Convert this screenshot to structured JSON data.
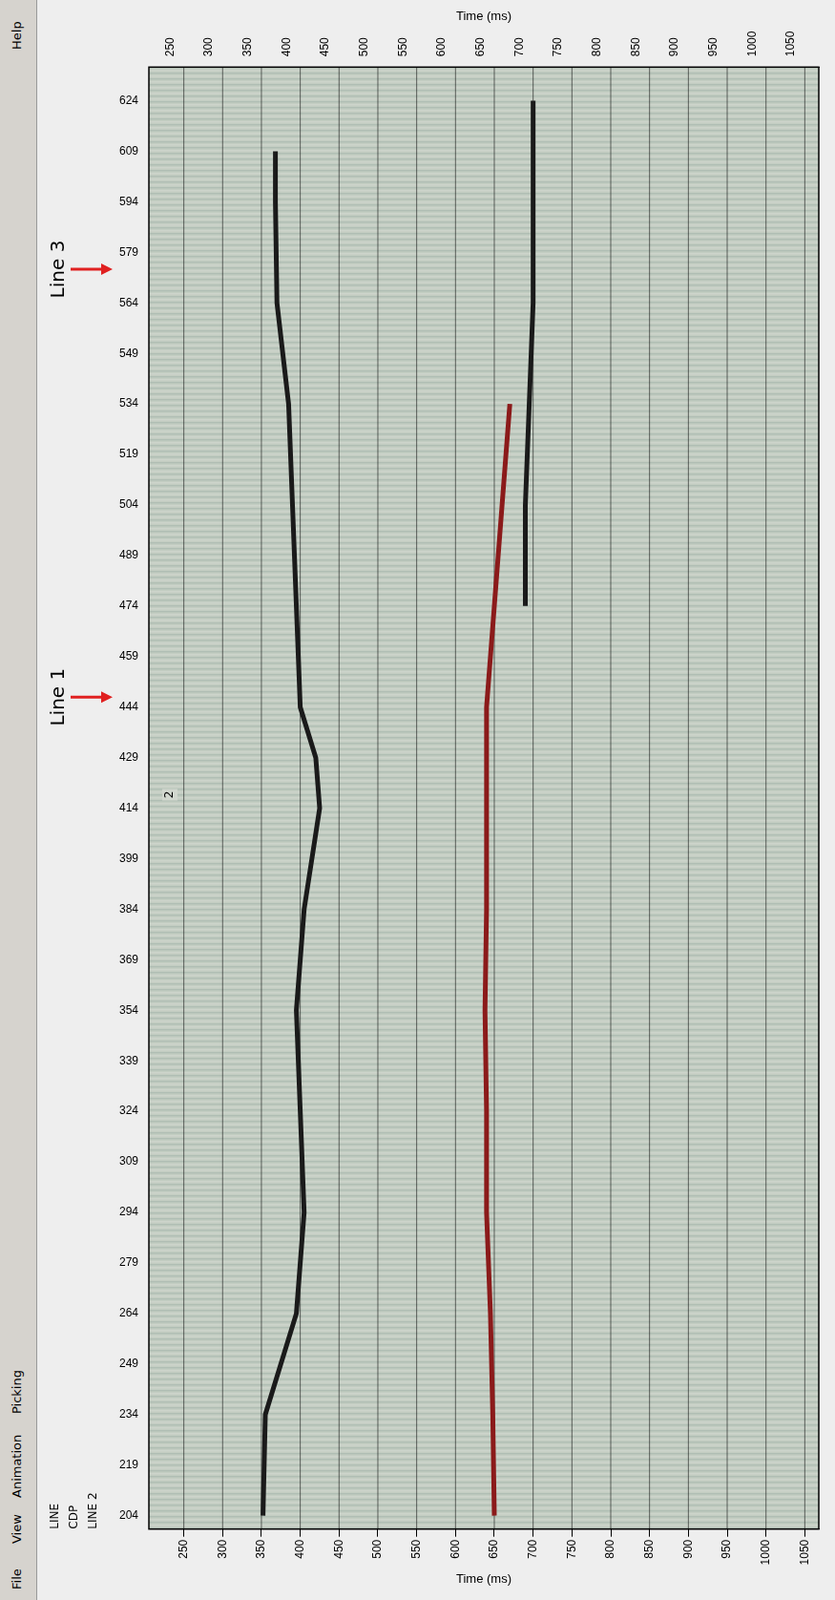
{
  "chart_data": {
    "type": "line",
    "x_label": "Time (ms)",
    "y_label": "CDP",
    "line_label": "LINE",
    "line_name": "LINE 2",
    "xlim": [
      205,
      1068
    ],
    "xticks": [
      250,
      300,
      350,
      400,
      450,
      500,
      550,
      600,
      650,
      700,
      750,
      800,
      850,
      900,
      950,
      1000,
      1050
    ],
    "ylim": [
      200,
      634
    ],
    "yticks": [
      204,
      219,
      234,
      249,
      264,
      279,
      294,
      309,
      324,
      339,
      354,
      369,
      384,
      399,
      414,
      429,
      444,
      459,
      474,
      489,
      504,
      519,
      534,
      549,
      564,
      579,
      594,
      609,
      624
    ],
    "grid": true,
    "menu": [
      "File",
      "View",
      "Animation",
      "Picking",
      "Help"
    ],
    "annotations": [
      {
        "text": "Line 1",
        "y": 447
      },
      {
        "text": "Line 3",
        "y": 574
      }
    ],
    "marks": [
      {
        "text": "2",
        "x": 232,
        "y": 418
      }
    ],
    "series": [
      {
        "color": "#1a1a1a",
        "x": [
          352,
          355,
          395,
          405,
          400,
          395,
          405,
          425,
          420,
          400,
          395,
          390,
          385,
          370,
          368,
          368
        ],
        "y": [
          204,
          234,
          264,
          294,
          324,
          354,
          384,
          414,
          429,
          444,
          474,
          504,
          534,
          564,
          594,
          609
        ]
      },
      {
        "color": "#8b1a1a",
        "x": [
          650,
          648,
          645,
          640,
          640,
          638,
          640,
          640,
          640,
          650,
          660,
          670
        ],
        "y": [
          204,
          234,
          264,
          294,
          324,
          354,
          384,
          414,
          444,
          474,
          504,
          534
        ]
      },
      {
        "color": "#1a1a1a",
        "x": [
          690,
          690,
          695,
          700,
          700,
          700
        ],
        "y": [
          474,
          504,
          534,
          564,
          594,
          624
        ]
      }
    ]
  }
}
